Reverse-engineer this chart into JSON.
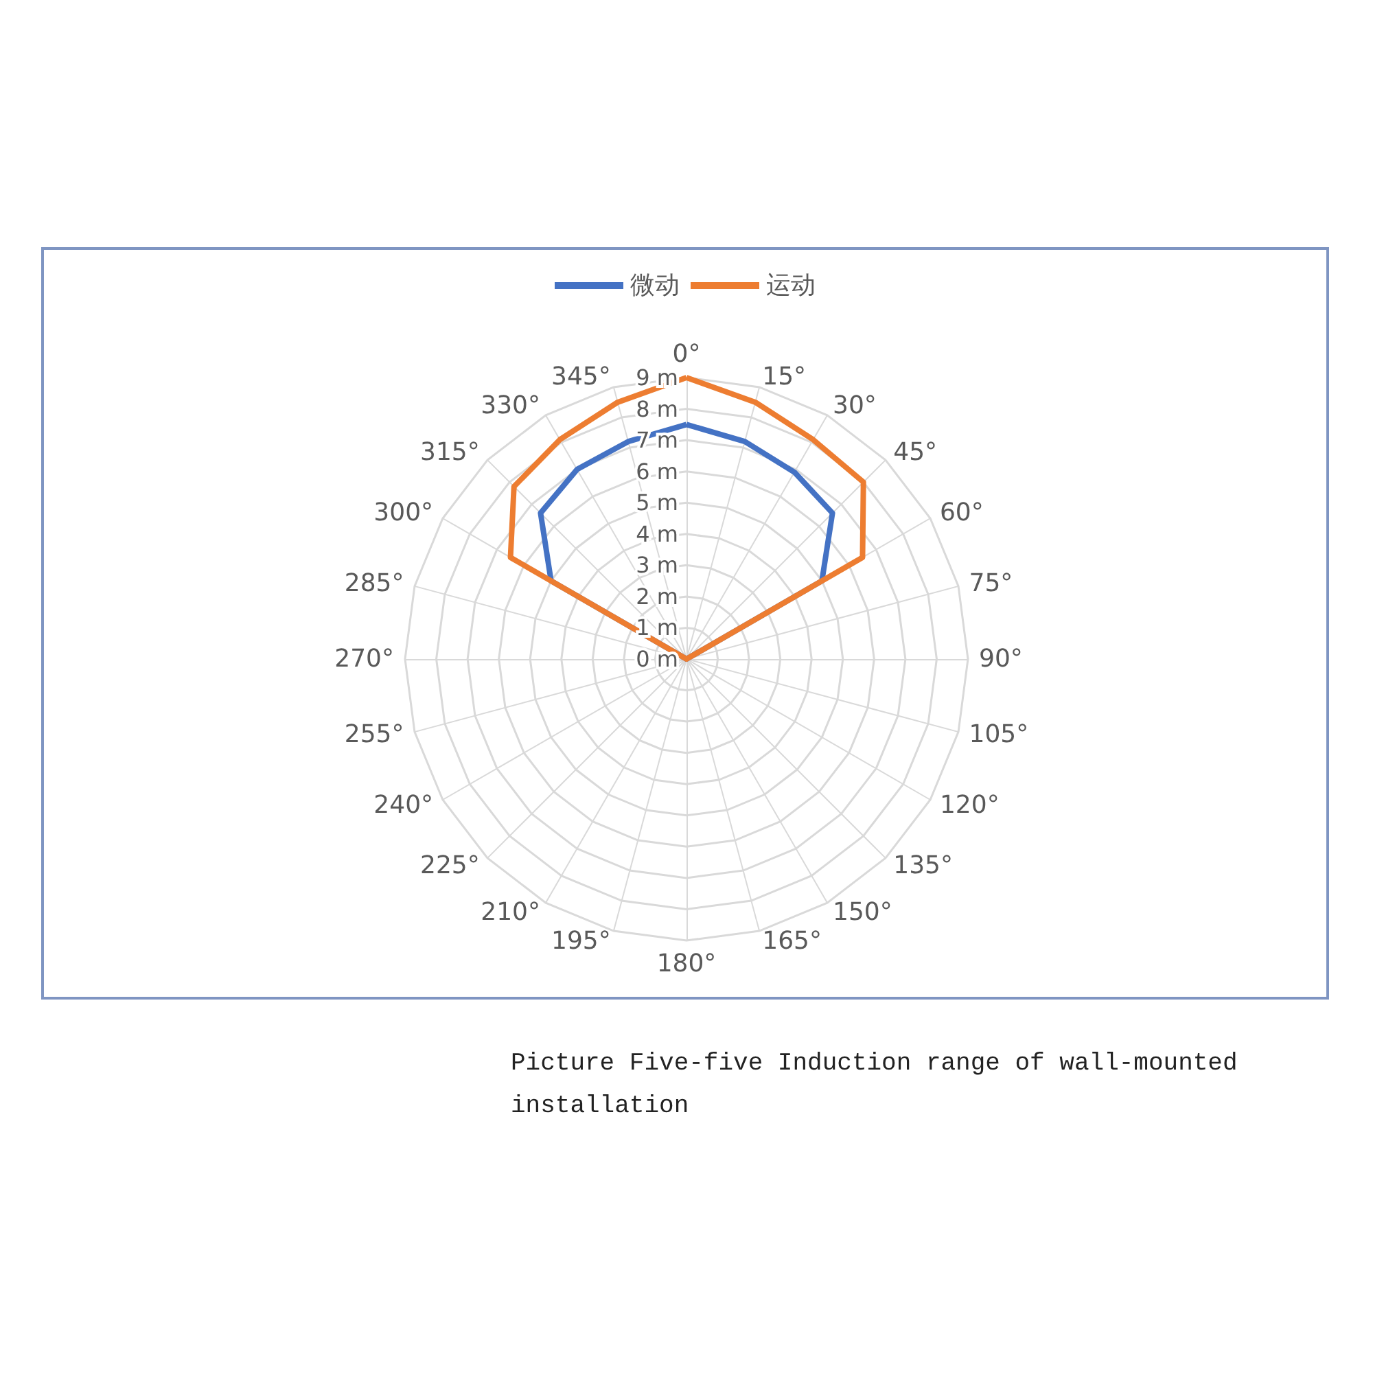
{
  "chart_data": {
    "type": "radar",
    "categories": [
      "0°",
      "15°",
      "30°",
      "45°",
      "60°",
      "75°",
      "90°",
      "105°",
      "120°",
      "135°",
      "150°",
      "165°",
      "180°",
      "195°",
      "210°",
      "225°",
      "240°",
      "255°",
      "270°",
      "285°",
      "300°",
      "315°",
      "330°",
      "345°"
    ],
    "series": [
      {
        "name": "微动",
        "color": "#4472c4",
        "values": [
          7.5,
          7.2,
          6.9,
          6.6,
          5,
          0,
          0,
          0,
          0,
          0,
          0,
          0,
          0,
          0,
          0,
          0,
          0,
          0,
          0,
          0,
          5,
          6.6,
          7,
          7.2
        ]
      },
      {
        "name": "运动",
        "color": "#ed7d31",
        "values": [
          9,
          8.5,
          8.1,
          8,
          6.5,
          0,
          0,
          0,
          0,
          0,
          0,
          0,
          0,
          0,
          0,
          0,
          0,
          0,
          0,
          0,
          6.5,
          7.8,
          8.1,
          8.5
        ]
      }
    ],
    "ylim": [
      0,
      9
    ],
    "yticks": [
      {
        "value": 0,
        "label": "0 m"
      },
      {
        "value": 1,
        "label": "1 m"
      },
      {
        "value": 2,
        "label": "2 m"
      },
      {
        "value": 3,
        "label": "3 m"
      },
      {
        "value": 4,
        "label": "4 m"
      },
      {
        "value": 5,
        "label": "5 m"
      },
      {
        "value": 6,
        "label": "6 m"
      },
      {
        "value": 7,
        "label": "7 m"
      },
      {
        "value": 8,
        "label": "8 m"
      },
      {
        "value": 9,
        "label": "9 m"
      }
    ],
    "grid": true,
    "legend": "top",
    "marker": "none",
    "line_style": "solid",
    "annotations": [
      "Picture Five-five Induction range of wall-mounted installation"
    ]
  }
}
